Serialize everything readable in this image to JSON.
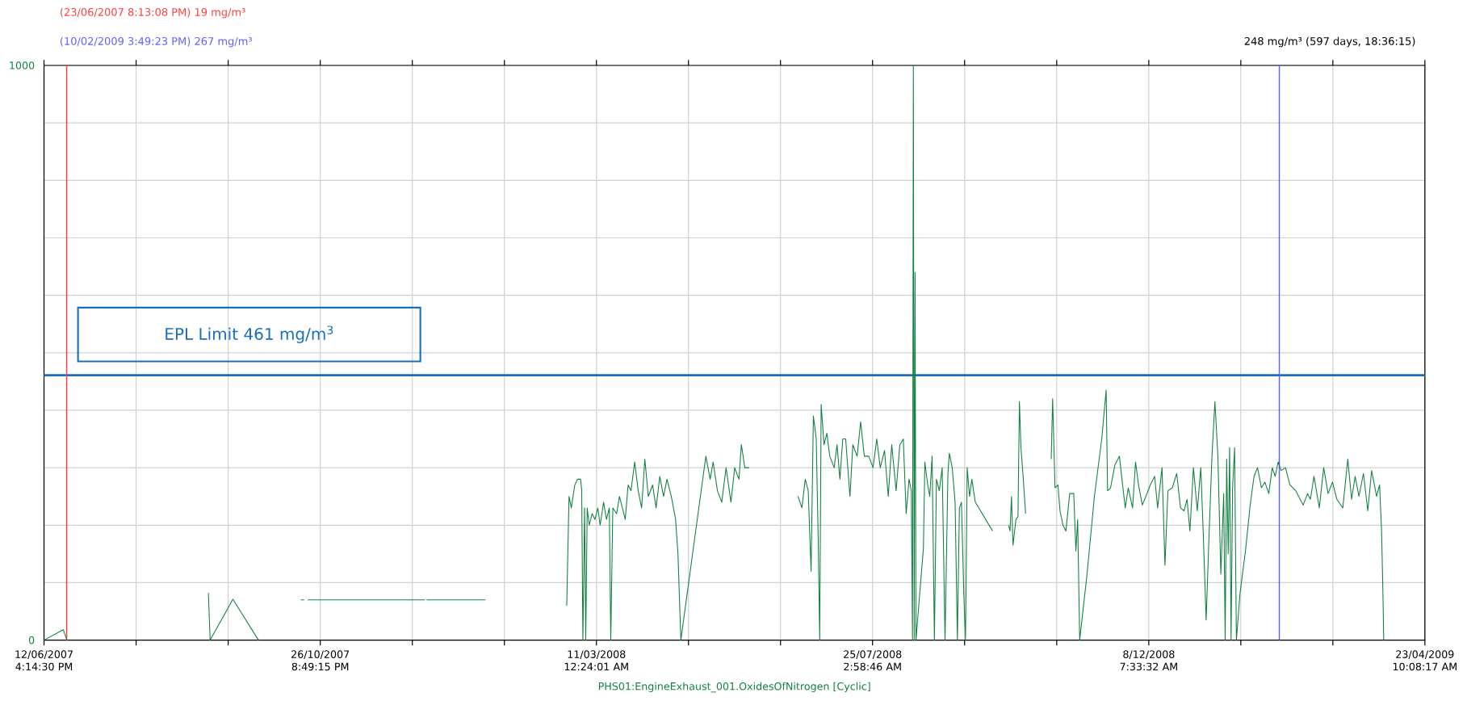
{
  "chart_data": {
    "type": "line",
    "xlabel": "PHS01:EngineExhaust_001.OxidesOfNitrogen [Cyclic]",
    "xlim": [
      "2007-06-12T16:14:30",
      "2009-04-23T10:08:17"
    ],
    "xticks": [
      {
        "value": "2007-06-12T16:14:30",
        "label": "12/06/2007 4:14:30 PM"
      },
      {
        "value": "2007-07-28T01:46:05",
        "label": null
      },
      {
        "value": "2007-09-11T11:17:40",
        "label": null
      },
      {
        "value": "2007-10-26T20:49:15",
        "label": "26/10/2007 8:49:15 PM"
      },
      {
        "value": "2007-12-11T06:00:50",
        "label": null
      },
      {
        "value": "2008-01-25T15:12:25",
        "label": null
      },
      {
        "value": "2008-03-11T00:24:01",
        "label": "11/03/2008 12:24:01 AM"
      },
      {
        "value": "2008-04-25T09:15:36",
        "label": null
      },
      {
        "value": "2008-06-09T18:07:11",
        "label": null
      },
      {
        "value": "2008-07-25T02:58:46",
        "label": "25/07/2008 2:58:46 AM"
      },
      {
        "value": "2008-09-08T12:30:21",
        "label": null
      },
      {
        "value": "2008-10-23T22:01:56",
        "label": null
      },
      {
        "value": "2008-12-08T07:33:32",
        "label": "8/12/2008 7:33:32 AM"
      },
      {
        "value": "2009-01-22T16:25:07",
        "label": null
      },
      {
        "value": "2009-03-09T01:16:42",
        "label": null
      },
      {
        "value": "2009-04-23T10:08:17",
        "label": "23/04/2009 10:08:17 AM"
      }
    ],
    "ylim": [
      0,
      1000
    ],
    "yticks": [
      0,
      {
        "value": 100,
        "label": null
      },
      {
        "value": 200,
        "label": null
      },
      {
        "value": 300,
        "label": null
      },
      {
        "value": 400,
        "label": null
      },
      {
        "value": 500,
        "label": null
      },
      {
        "value": 600,
        "label": null
      },
      {
        "value": 700,
        "label": null
      },
      {
        "value": 800,
        "label": null
      },
      {
        "value": 900,
        "label": null
      },
      1000
    ],
    "grid": true,
    "series": [
      {
        "color": "#128040",
        "x": [
          "2007-06-12T16:14:30",
          "2007-06-22T04:00",
          "2007-06-24T00:00",
          "2007-07-15",
          "2007-09-01T17:00",
          "2007-09-02T14:00",
          "2007-09-13T19:00",
          "2007-09-26T10:00",
          "2007-10-10",
          "2007-10-17T07:00",
          "2007-10-18T22:00",
          "2007-10-19T20:00",
          "2007-10-20T17:00",
          "2007-12-17T10:00",
          "2007-12-17T20:00",
          "2007-12-18T07:00",
          "2008-01-16T07:00",
          "2008-02-05",
          "2008-02-25T09:00",
          "2008-02-25T23:00",
          "2008-02-26T12:00",
          "2008-02-27T15:00",
          "2008-02-29T08:00",
          "2008-03-01T18:00",
          "2008-03-03T05:00",
          "2008-03-03T18:00",
          "2008-03-04T08:00",
          "2008-03-05T04:00",
          "2008-03-05T18:00",
          "2008-03-06T11:00",
          "2008-03-07T11:00",
          "2008-03-08T21:00",
          "2008-03-10T07:00",
          "2008-03-11T17:00",
          "2008-03-12T20:00",
          "2008-03-14T13:00",
          "2008-03-15T23:00",
          "2008-03-17T09:00",
          "2008-03-18T02:00",
          "2008-03-19T02:00",
          "2008-03-20T23:00",
          "2008-03-22T09:00",
          "2008-03-25T05:00",
          "2008-03-26T15:00",
          "2008-03-28T01:00",
          "2008-03-29T21:00",
          "2008-03-31T14:00",
          "2008-04-02T07:00",
          "2008-04-03T21:00",
          "2008-04-05T14:00",
          "2008-04-07T17:00",
          "2008-04-09T10:00",
          "2008-04-11T06:00",
          "2008-04-13T02:00",
          "2008-04-14T19:00",
          "2008-04-16T22:00",
          "2008-04-19T01:00",
          "2008-04-20T05:00",
          "2008-04-21T15:00",
          "2008-05-03T23:00",
          "2008-05-06T02:00",
          "2008-05-07T13:00",
          "2008-05-09T16:00",
          "2008-05-11T19:00",
          "2008-05-13T22:00",
          "2008-05-16T08:00",
          "2008-05-18T04:00",
          "2008-05-20T07:00",
          "2008-05-21T11:00",
          "2008-05-23T04:00",
          "2008-05-25T07:00",
          "2008-06-05",
          "2008-06-18T10:00",
          "2008-06-20T07:00",
          "2008-06-21T23:00",
          "2008-06-23T10:00",
          "2008-06-24T20:00",
          "2008-06-25T23:00",
          "2008-06-27T09:00",
          "2008-06-28T09:00",
          "2008-06-29T02:00",
          "2008-06-29T19:00",
          "2008-07-01T05:00",
          "2008-07-02T15:00",
          "2008-07-04T01:00",
          "2008-07-06T05:00",
          "2008-07-07T15:00",
          "2008-07-09T01:00",
          "2008-07-10T11:00",
          "2008-07-11T21:00",
          "2008-07-14T00:00",
          "2008-07-15T10:00",
          "2008-07-17T13:00",
          "2008-07-19T06:00",
          "2008-07-21T02:00",
          "2008-07-23T06:00",
          "2008-07-25T09:00",
          "2008-07-27T05:00",
          "2008-07-28T22:00",
          "2008-07-31T01:00",
          "2008-08-01T21:00",
          "2008-08-03T14:00",
          "2008-08-05T18:00",
          "2008-08-07T14:00",
          "2008-08-09T07:00",
          "2008-08-10T17:00",
          "2008-08-12T03:00",
          "2008-08-13T06:00",
          "2008-08-13T20:00",
          "2008-08-14T06:00",
          "2008-08-14T16:00",
          "2008-08-15T02:00",
          "2008-08-15T13:00",
          "2008-08-19T05:00",
          "2008-08-19T22:00",
          "2008-08-21T08:00",
          "2008-08-22T08:00",
          "2008-08-23T12:00",
          "2008-08-24T15:00",
          "2008-08-25T15:00",
          "2008-08-27T01:00",
          "2008-08-28T11:00",
          "2008-08-29T21:00",
          "2008-08-31T07:00",
          "2008-09-01T00:00",
          "2008-09-02T10:00",
          "2008-09-03T20:00",
          "2008-09-04T23:00",
          "2008-09-05T23:00",
          "2008-09-06T23:00",
          "2008-09-08T03:00",
          "2008-09-08T23:00",
          "2008-09-09T19:00",
          "2008-09-10T23:00",
          "2008-09-12T02:00",
          "2008-09-13T19:00",
          "2008-09-22T07:00",
          "2008-09-26",
          "2008-09-30T05:00",
          "2008-09-30T22:00",
          "2008-10-01T15:00",
          "2008-10-02T09:00",
          "2008-10-03T20:00",
          "2008-10-04T20:00",
          "2008-10-05T13:00",
          "2008-10-06T07:00",
          "2008-10-07T11:00",
          "2008-10-08T14:00",
          "2008-10-15",
          "2008-10-21T05:00",
          "2008-10-21T22:00",
          "2008-10-23T02:00",
          "2008-10-24T13:00",
          "2008-10-25T13:00",
          "2008-10-27T00:00",
          "2008-10-28T11:00",
          "2008-10-30T08:00",
          "2008-11-01T08:00",
          "2008-11-02T09:00",
          "2008-11-03T06:00",
          "2008-11-04T06:00",
          "2008-11-07T21:00",
          "2008-11-11T12:00",
          "2008-11-15T03:00",
          "2008-11-17T07:00",
          "2008-11-18T00:00",
          "2008-11-19T11:00",
          "2008-11-21T15:00",
          "2008-11-23T20:00",
          "2008-11-25T06:00",
          "2008-11-26T17:00",
          "2008-11-28T04:00",
          "2008-11-30T08:00",
          "2008-12-01T19:00",
          "2008-12-03T06:00",
          "2008-12-05T03:00",
          "2008-12-06T21:00",
          "2008-12-09T01:00",
          "2008-12-11T05:00",
          "2008-12-12T16:00",
          "2008-12-14T20:00",
          "2008-12-16T07:00",
          "2008-12-17T18:00",
          "2008-12-19T22:00",
          "2008-12-22T02:00",
          "2008-12-23T23:00",
          "2008-12-25T17:00",
          "2008-12-27T04:00",
          "2008-12-28T14:00",
          "2008-12-30T08:00",
          "2009-01-01T05:00",
          "2009-01-02T23:00",
          "2009-01-04T03:00",
          "2009-01-05T14:00",
          "2009-01-07T00:00",
          "2009-01-08T11:00",
          "2009-01-09T22:00",
          "2009-01-11T09:00",
          "2009-01-12T20:00",
          "2009-01-14T06:00",
          "2009-01-14T23:00",
          "2009-01-15T17:00",
          "2009-01-16T11:00",
          "2009-01-17T04:00",
          "2009-01-17T21:00",
          "2009-01-18T15:00",
          "2009-01-19T15:00",
          "2009-01-20T12:00",
          "2009-01-22T06:00",
          "2009-01-25T03:00",
          "2009-01-27T07:00",
          "2009-01-29T05:00",
          "2009-01-30T22:00",
          "2009-02-01T20:00",
          "2009-02-03T13:00",
          "2009-02-05T11:00",
          "2009-02-07T04:00",
          "2009-02-08T15:00",
          "2009-02-10T02:00",
          "2009-02-11T13:00",
          "2009-02-13T17:00",
          "2009-02-15T21:00",
          "2009-02-18T18:00",
          "2009-02-22T10:00",
          "2009-02-24T14:00",
          "2009-02-26T00:00",
          "2009-02-27T18:00",
          "2009-03-02T09:00",
          "2009-03-04T13:00",
          "2009-03-06T17:00",
          "2009-03-08T21:00",
          "2009-03-11T01:00",
          "2009-03-13T23:00",
          "2009-03-16T10:00",
          "2009-03-18T07:00",
          "2009-03-20T01:00",
          "2009-03-21T22:00",
          "2009-03-24T03:00",
          "2009-03-26T07:00",
          "2009-03-28T04:00",
          "2009-03-30T15:00",
          "2009-04-01T02:00",
          "2009-04-02T02:00",
          "2009-04-02T20:00",
          "2009-04-03T03:00"
        ],
        "values": [
          0,
          18,
          0,
          null,
          82,
          0,
          71,
          0,
          null,
          70,
          70,
          null,
          70,
          70,
          null,
          70,
          70,
          null,
          60,
          160,
          250,
          230,
          270,
          280,
          280,
          260,
          0,
          230,
          0,
          230,
          200,
          220,
          210,
          230,
          200,
          240,
          210,
          230,
          0,
          230,
          220,
          250,
          210,
          270,
          260,
          310,
          260,
          230,
          315,
          250,
          270,
          230,
          285,
          250,
          280,
          250,
          210,
          150,
          0,
          320,
          280,
          310,
          260,
          240,
          300,
          240,
          300,
          280,
          340,
          300,
          300,
          null,
          250,
          230,
          280,
          260,
          120,
          390,
          350,
          170,
          0,
          410,
          340,
          360,
          320,
          300,
          340,
          280,
          350,
          350,
          250,
          340,
          320,
          380,
          320,
          320,
          300,
          350,
          300,
          330,
          250,
          340,
          260,
          340,
          350,
          220,
          280,
          260,
          0,
          1000,
          0,
          640,
          0,
          160,
          310,
          270,
          250,
          320,
          0,
          280,
          260,
          300,
          0,
          290,
          325,
          300,
          240,
          0,
          230,
          240,
          80,
          0,
          300,
          250,
          280,
          240,
          190,
          null,
          200,
          190,
          250,
          165,
          210,
          215,
          415,
          335,
          280,
          220,
          null,
          315,
          420,
          265,
          270,
          225,
          200,
          190,
          255,
          255,
          155,
          210,
          0,
          115,
          250,
          350,
          435,
          260,
          265,
          305,
          320,
          275,
          230,
          265,
          230,
          310,
          270,
          235,
          250,
          270,
          285,
          230,
          300,
          130,
          260,
          265,
          290,
          230,
          225,
          245,
          190,
          300,
          225,
          300,
          190,
          35,
          180,
          320,
          415,
          320,
          115,
          255,
          0,
          315,
          150,
          335,
          0,
          265,
          335,
          0,
          80,
          160,
          235,
          285,
          300,
          265,
          275,
          255,
          300,
          285,
          310,
          295,
          300,
          270,
          260,
          235,
          255,
          245,
          285,
          230,
          300,
          255,
          275,
          245,
          230,
          315,
          245,
          285,
          250,
          290,
          225,
          295,
          250,
          270,
          190,
          65,
          0
        ]
      }
    ],
    "ref_lines": [
      {
        "axis": "y",
        "value": 461,
        "label": "EPL Limit 461 mg/m$^{3}$",
        "color": "#1a6fbd"
      },
      {
        "axis": "x",
        "value": "2007-06-23T20:13:08",
        "label": "(23/06/2007 8:13:08 PM) 19 mg/m³",
        "color": "#ff4040"
      },
      {
        "axis": "x",
        "value": "2009-02-10T15:49:23",
        "label": "(10/02/2009 3:49:23 PM) 267 mg/m³",
        "color": "#6060ff"
      }
    ],
    "annotations": [
      "248 mg/m³ (597 days, 18:36:15)"
    ]
  }
}
